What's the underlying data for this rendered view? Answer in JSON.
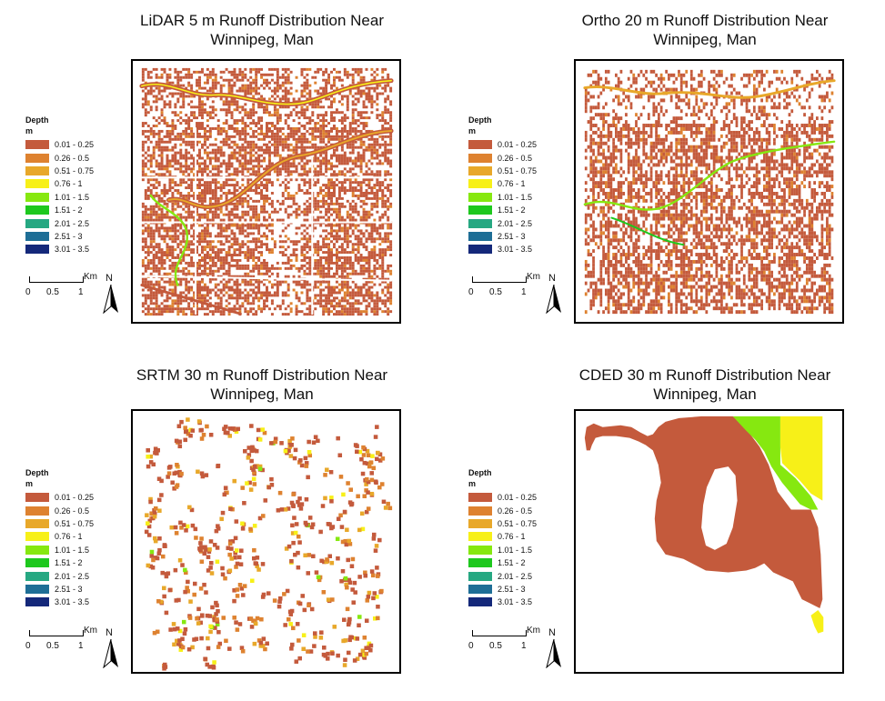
{
  "panels": [
    {
      "id": "lidar",
      "title_line1": "LiDAR 5 m Runoff Distribution Near",
      "title_line2": "Winnipeg, Man"
    },
    {
      "id": "ortho",
      "title_line1": "Ortho 20 m Runoff Distribution Near",
      "title_line2": "Winnipeg, Man"
    },
    {
      "id": "srtm",
      "title_line1": "SRTM 30 m Runoff Distribution Near",
      "title_line2": "Winnipeg, Man"
    },
    {
      "id": "cded",
      "title_line1": "CDED 30 m Runoff Distribution Near",
      "title_line2": "Winnipeg, Man"
    }
  ],
  "legend": {
    "title": "Depth",
    "unit": "m",
    "classes": [
      {
        "label": "0.01 - 0.25",
        "color": "#c45a3c"
      },
      {
        "label": "0.26 - 0.5",
        "color": "#de8230"
      },
      {
        "label": "0.51 - 0.75",
        "color": "#e8a82a"
      },
      {
        "label": "0.76 - 1",
        "color": "#f7f018"
      },
      {
        "label": "1.01 - 1.5",
        "color": "#86e810"
      },
      {
        "label": "1.51 - 2",
        "color": "#1ec81e"
      },
      {
        "label": "2.01 - 2.5",
        "color": "#26a882"
      },
      {
        "label": "2.51 - 3",
        "color": "#1e6e96"
      },
      {
        "label": "3.01 - 3.5",
        "color": "#14287a"
      }
    ]
  },
  "scalebar": {
    "ticks": [
      "0",
      "0.5",
      "1"
    ],
    "unit": "Km"
  },
  "north_label": "N"
}
